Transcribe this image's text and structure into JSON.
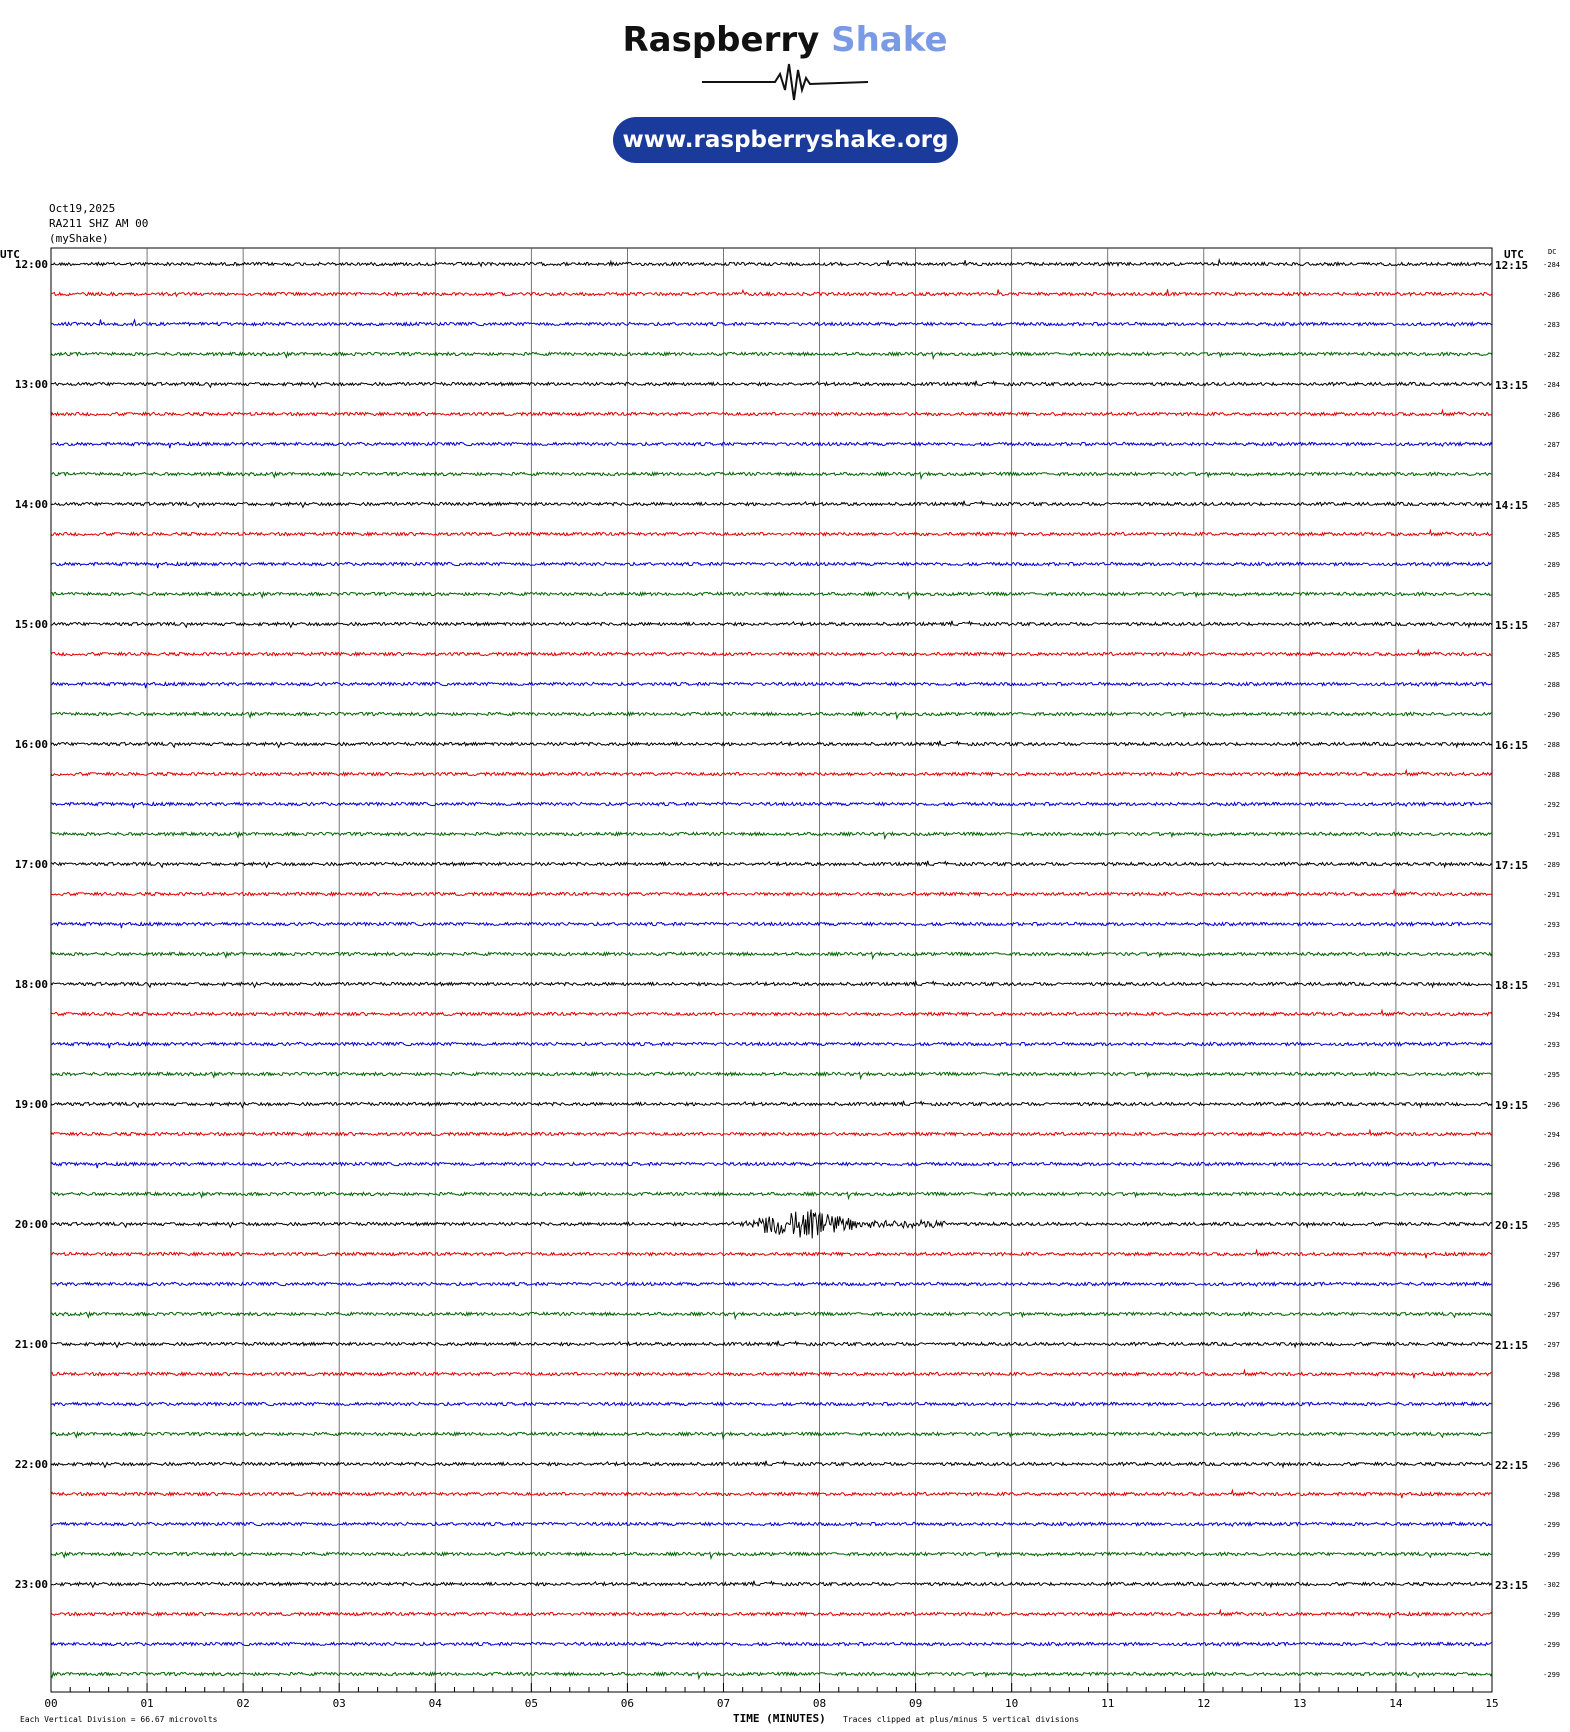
{
  "brand": {
    "name_part1": "Raspberry",
    "name_part2": "Shake",
    "url": "www.raspberryshake.org",
    "accent_color": "#7b9ae6",
    "pill_color": "#1a3a9c"
  },
  "header": {
    "date": "Oct19,2025",
    "station": "RA211 SHZ AM 00",
    "source": "(myShake)"
  },
  "footer": {
    "division_note": "Each Vertical Division =   66.67 microvolts",
    "xlabel": "TIME (MINUTES)",
    "clip_note": "Traces clipped at plus/minus 5 vertical divisions"
  },
  "chart_data": {
    "type": "line",
    "title": "",
    "xlabel": "TIME (MINUTES)",
    "ylabel": "",
    "left_axis_label": "UTC",
    "right_axis_label": "UTC",
    "dc_label": "DC",
    "x_ticks": [
      "00",
      "01",
      "02",
      "03",
      "04",
      "05",
      "06",
      "07",
      "08",
      "09",
      "10",
      "11",
      "12",
      "13",
      "14",
      "15"
    ],
    "xlim": [
      0,
      15
    ],
    "grid": true,
    "trace_colors": [
      "#000000",
      "#e00000",
      "#0000d0",
      "#006400"
    ],
    "hours": [
      {
        "left": "12:00",
        "right": "12:15"
      },
      {
        "left": "13:00",
        "right": "13:15"
      },
      {
        "left": "14:00",
        "right": "14:15"
      },
      {
        "left": "15:00",
        "right": "15:15"
      },
      {
        "left": "16:00",
        "right": "16:15"
      },
      {
        "left": "17:00",
        "right": "17:15"
      },
      {
        "left": "18:00",
        "right": "18:15"
      },
      {
        "left": "19:00",
        "right": "19:15"
      },
      {
        "left": "20:00",
        "right": "20:15"
      },
      {
        "left": "21:00",
        "right": "21:15"
      },
      {
        "left": "22:00",
        "right": "22:15"
      },
      {
        "left": "23:00",
        "right": "23:15"
      }
    ],
    "dc_values": [
      "-284",
      "-286",
      "-283",
      "-282",
      "-284",
      "-286",
      "-287",
      "-284",
      "-285",
      "-285",
      "-289",
      "-285",
      "-287",
      "-285",
      "-288",
      "-290",
      "-288",
      "-288",
      "-292",
      "-291",
      "-289",
      "-291",
      "-293",
      "-293",
      "-291",
      "-294",
      "-293",
      "-295",
      "-296",
      "-294",
      "-296",
      "-298",
      "-295",
      "-297",
      "-296",
      "-297",
      "-297",
      "-298",
      "-296",
      "-299",
      "-296",
      "-298",
      "-299",
      "-299",
      "-302",
      "-299",
      "-299",
      "-299"
    ],
    "events": [
      {
        "row": 32,
        "start_min": 7.2,
        "end_min": 9.3,
        "amplitude_div": 2.5
      }
    ]
  }
}
